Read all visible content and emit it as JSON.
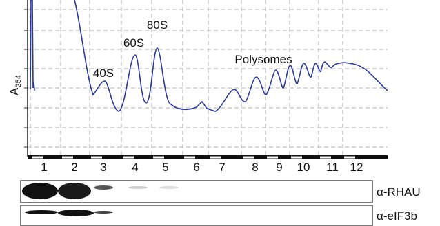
{
  "figure": {
    "y_label": {
      "main": "A",
      "sub": "254"
    },
    "peaks": [
      "40S",
      "60S",
      "80S",
      "Polysomes"
    ],
    "fractions": [
      "1",
      "2",
      "3",
      "4",
      "5",
      "6",
      "7",
      "8",
      "9",
      "10",
      "11",
      "12"
    ],
    "blots": [
      "α-RHAU",
      "α-eIF3b"
    ]
  }
}
